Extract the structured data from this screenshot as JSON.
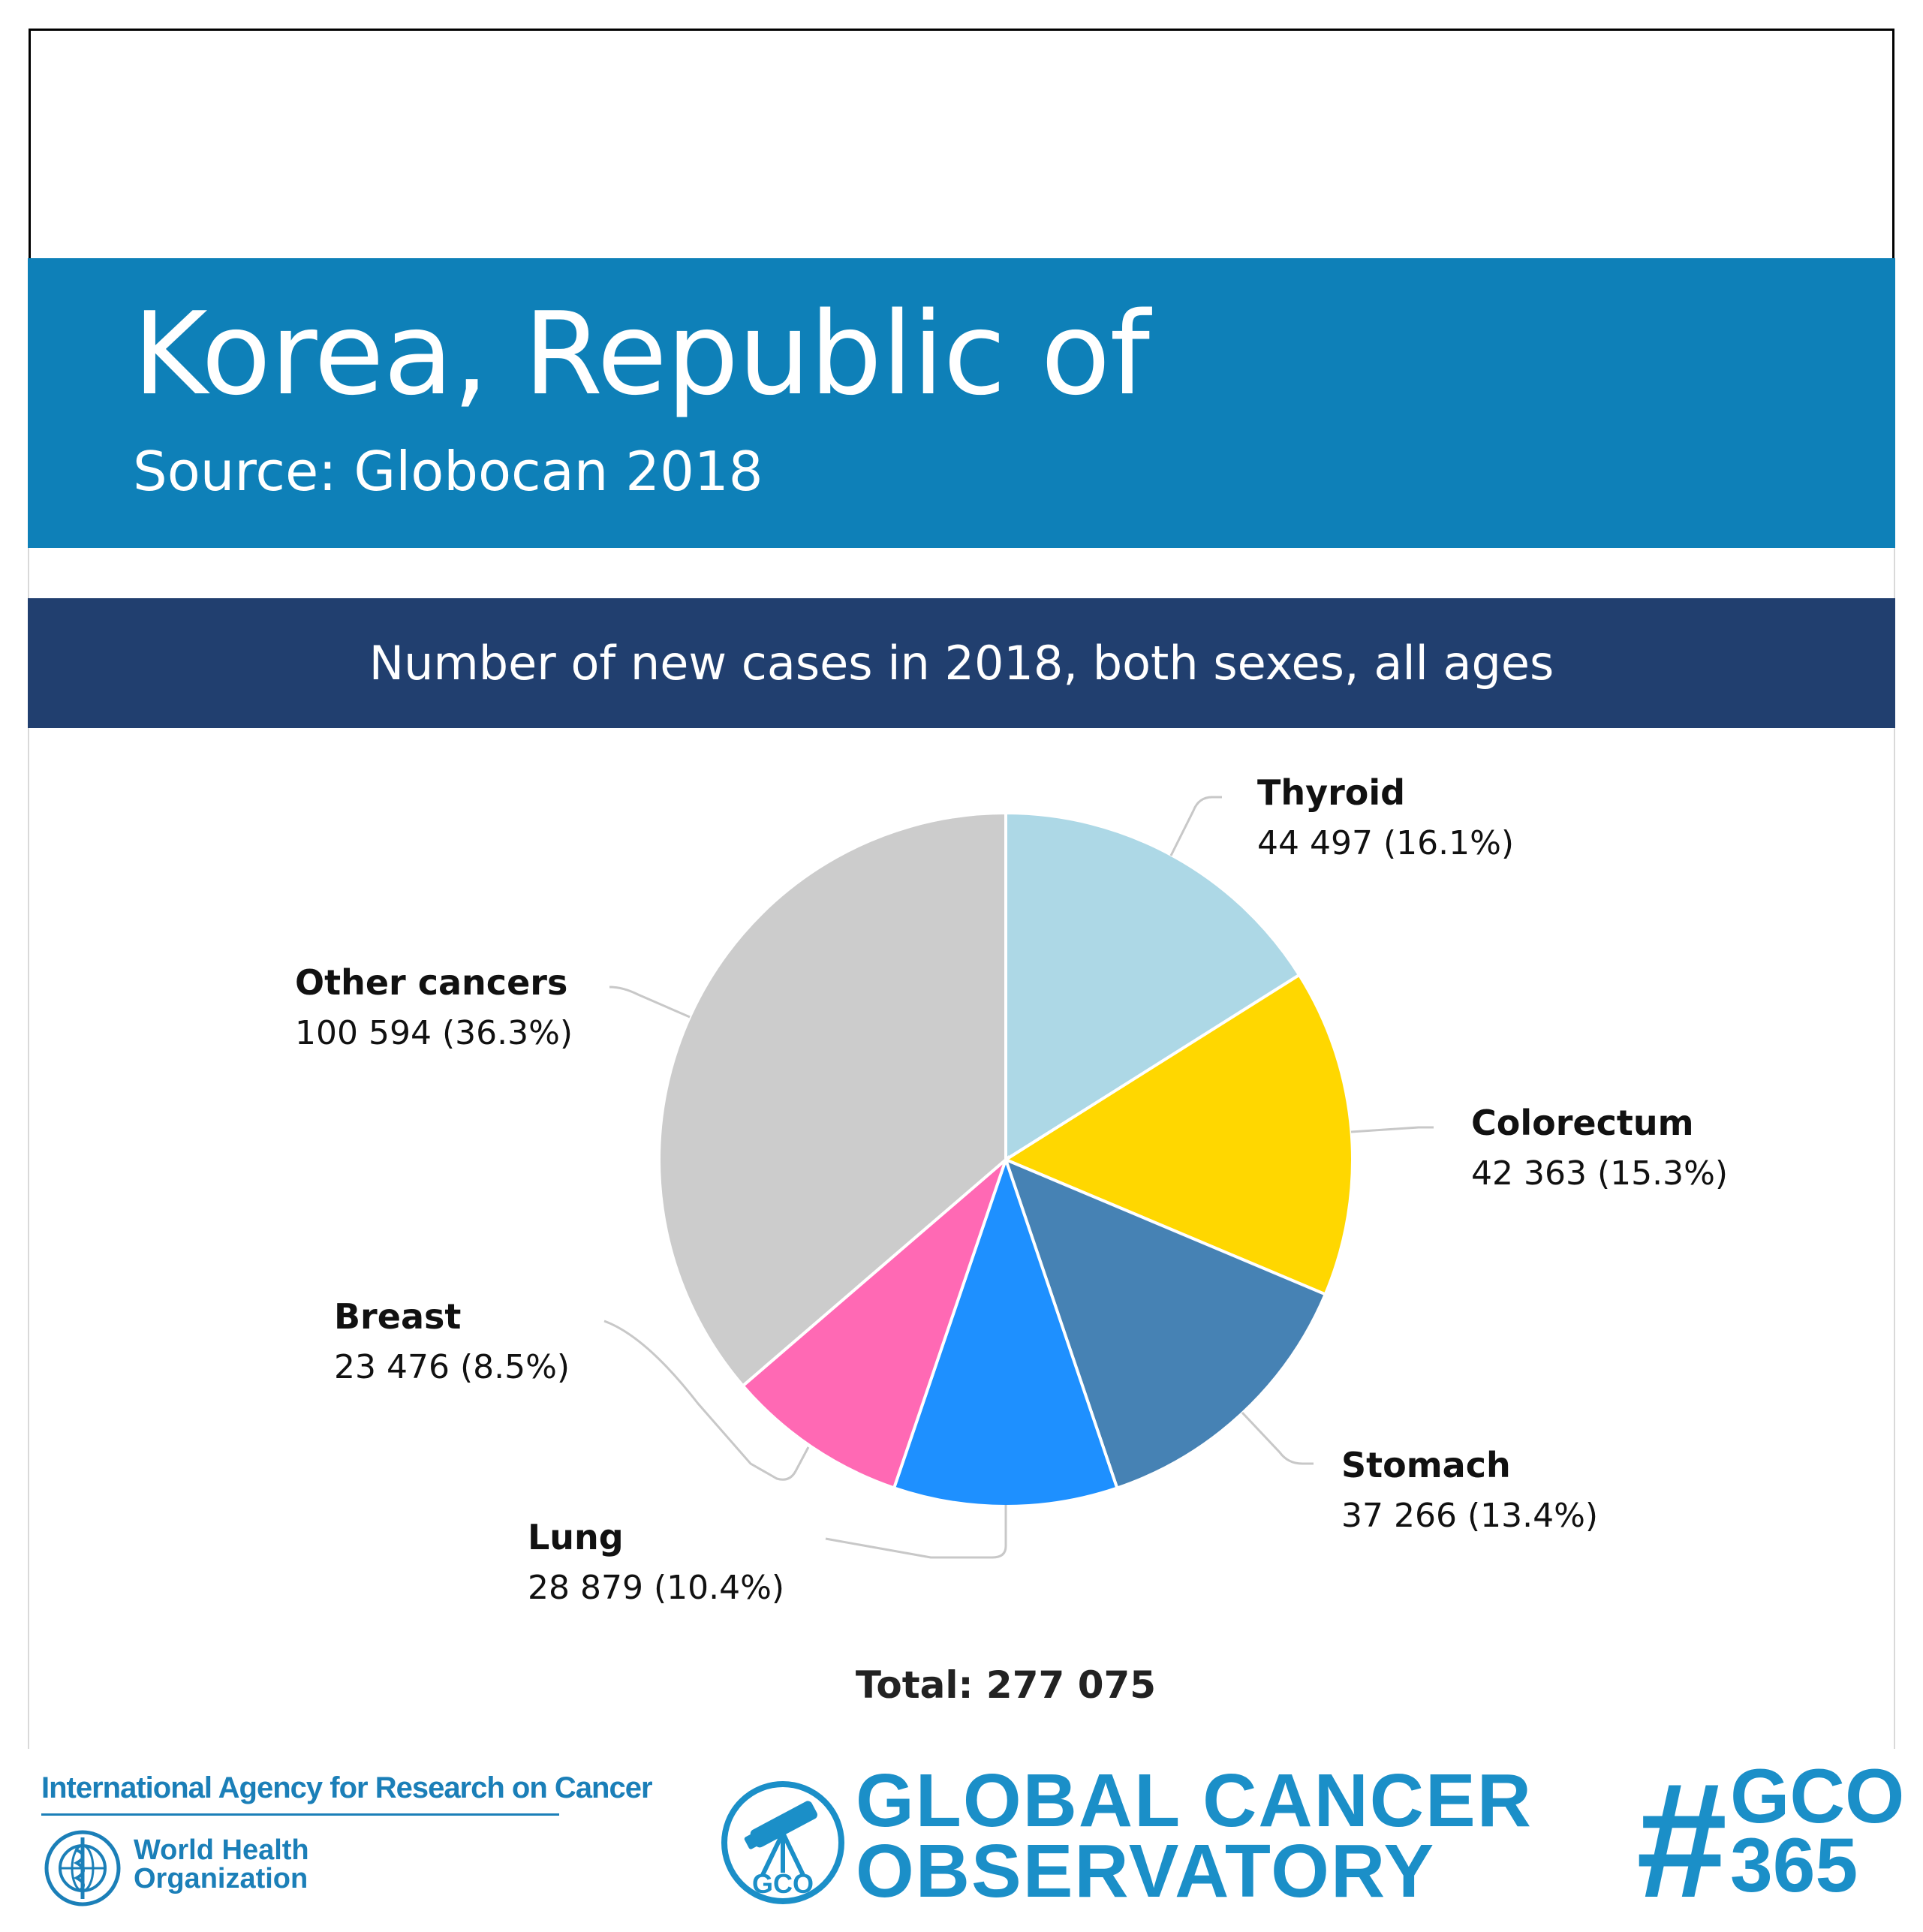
{
  "header": {
    "country": "Korea, Republic of",
    "source": "Source: Globocan 2018"
  },
  "subtitle": "Number of new cases in 2018, both sexes, all ages",
  "colors": {
    "country_band": "#0e80b8",
    "subtitle_band": "#213f6f",
    "brand_blue": "#1b8fc8"
  },
  "chart_data": {
    "type": "pie",
    "title": "Number of new cases in 2018, both sexes, all ages",
    "slices": [
      {
        "name": "Thyroid",
        "value": 44497,
        "value_label": "44 497 (16.1%)",
        "percent": 16.1,
        "color": "#add8e6"
      },
      {
        "name": "Colorectum",
        "value": 42363,
        "value_label": "42 363 (15.3%)",
        "percent": 15.3,
        "color": "#ffd700"
      },
      {
        "name": "Stomach",
        "value": 37266,
        "value_label": "37 266 (13.4%)",
        "percent": 13.4,
        "color": "#4682b4"
      },
      {
        "name": "Lung",
        "value": 28879,
        "value_label": "28 879 (10.4%)",
        "percent": 10.4,
        "color": "#1e90ff"
      },
      {
        "name": "Breast",
        "value": 23476,
        "value_label": "23 476 (8.5%)",
        "percent": 8.5,
        "color": "#ff69b4"
      },
      {
        "name": "Other cancers",
        "value": 100594,
        "value_label": "100 594 (36.3%)",
        "percent": 36.3,
        "color": "#cccccc"
      }
    ],
    "total": 277075,
    "total_label": "Total: 277 075",
    "start_angle": "12 o'clock",
    "direction": "clockwise",
    "legend": "none (direct labels with leader lines)"
  },
  "footer": {
    "iarc": "International Agency for Research on Cancer",
    "who_line1": "World Health",
    "who_line2": "Organization",
    "gco_line1": "GLOBAL CANCER",
    "gco_line2": "OBSERVATORY",
    "gco_badge": "GCO",
    "hashtag_line1": "GCO",
    "hashtag_line2": "365",
    "hash_symbol": "#"
  }
}
